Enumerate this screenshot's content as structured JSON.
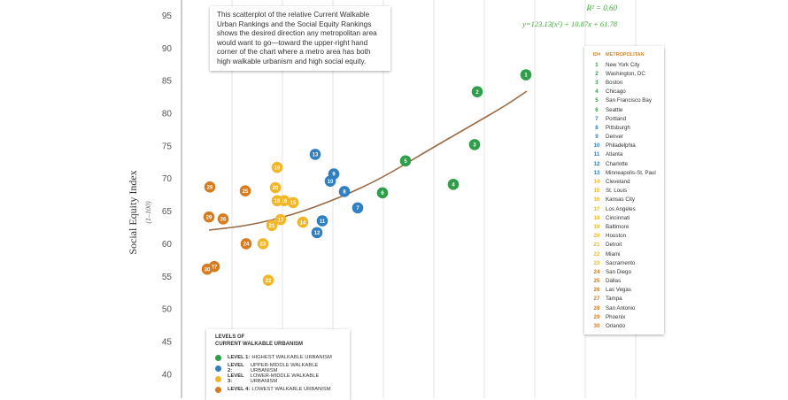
{
  "note_text": "This scatterplot of the relative Current Walkable Urban Rankings and the Social Equity Rankings shows the desired direction any metropolitan area would want to go—toward the upper-right hand corner of the chart where a metro area has both high walkable urbanism and high social equity.",
  "r2_label": "R² = 0.60",
  "equation_label": "y=123.13(x²) + 10.87x + 61.78",
  "legend": {
    "title_line1": "LEVELS OF",
    "title_line2": "CURRENT WALKABLE URBANISM",
    "levels": [
      {
        "level": "LEVEL 1:",
        "label": "HIGHEST WALKABLE URBANISM",
        "color": "#2e9e48"
      },
      {
        "level": "LEVEL 2:",
        "label": "UPPER-MIDDLE WALKABLE URBANISM",
        "color": "#2f7fc1"
      },
      {
        "level": "LEVEL 3:",
        "label": "LOWER-MIDDLE WALKABLE URBANISM",
        "color": "#f2b728"
      },
      {
        "level": "LEVEL 4:",
        "label": "LOWEST WALKABLE URBANISM",
        "color": "#d67b1e"
      }
    ]
  },
  "metro_table": {
    "col_id": "ID#",
    "col_name": "METROPOLITAN",
    "rows": [
      {
        "id": "1",
        "name": "New York City",
        "level": 1
      },
      {
        "id": "2",
        "name": "Washington, DC",
        "level": 1
      },
      {
        "id": "3",
        "name": "Boston",
        "level": 1
      },
      {
        "id": "4",
        "name": "Chicago",
        "level": 1
      },
      {
        "id": "5",
        "name": "San Francisco Bay",
        "level": 1
      },
      {
        "id": "6",
        "name": "Seattle",
        "level": 1
      },
      {
        "id": "7",
        "name": "Portland",
        "level": 2
      },
      {
        "id": "8",
        "name": "Pittsburgh",
        "level": 2
      },
      {
        "id": "9",
        "name": "Denver",
        "level": 2
      },
      {
        "id": "10",
        "name": "Philadelphia",
        "level": 2
      },
      {
        "id": "11",
        "name": "Atlanta",
        "level": 2
      },
      {
        "id": "12",
        "name": "Charlotte",
        "level": 2
      },
      {
        "id": "13",
        "name": "Minneapolis-St. Paul",
        "level": 2
      },
      {
        "id": "14",
        "name": "Cleveland",
        "level": 3
      },
      {
        "id": "15",
        "name": "St. Louis",
        "level": 3
      },
      {
        "id": "16",
        "name": "Kansas City",
        "level": 3
      },
      {
        "id": "17",
        "name": "Los Angeles",
        "level": 3
      },
      {
        "id": "18",
        "name": "Cincinnati",
        "level": 3
      },
      {
        "id": "19",
        "name": "Baltimore",
        "level": 3
      },
      {
        "id": "20",
        "name": "Houston",
        "level": 3
      },
      {
        "id": "21",
        "name": "Detroit",
        "level": 3
      },
      {
        "id": "22",
        "name": "Miami",
        "level": 3
      },
      {
        "id": "23",
        "name": "Sacramento",
        "level": 3
      },
      {
        "id": "24",
        "name": "San Diego",
        "level": 4
      },
      {
        "id": "25",
        "name": "Dallas",
        "level": 4
      },
      {
        "id": "26",
        "name": "Las Vegas",
        "level": 4
      },
      {
        "id": "27",
        "name": "Tampa",
        "level": 4
      },
      {
        "id": "28",
        "name": "San Antonio",
        "level": 4
      },
      {
        "id": "29",
        "name": "Phoenix",
        "level": 4
      },
      {
        "id": "30",
        "name": "Orlando",
        "level": 4
      }
    ]
  },
  "chart_data": {
    "type": "scatter",
    "ylabel": "Social Equity Index",
    "ylabel_sub": "(1–100)",
    "ylim": [
      38,
      97
    ],
    "y_ticks": [
      40,
      45,
      50,
      55,
      60,
      65,
      70,
      75,
      80,
      85,
      90,
      95
    ],
    "grid": "vertical lines only",
    "trendline": "quadratic",
    "points": [
      {
        "id": "1",
        "y": 85.9,
        "level": 1
      },
      {
        "id": "2",
        "y": 83.3,
        "level": 1
      },
      {
        "id": "3",
        "y": 75.2,
        "level": 1
      },
      {
        "id": "4",
        "y": 69.1,
        "level": 1
      },
      {
        "id": "5",
        "y": 72.7,
        "level": 1
      },
      {
        "id": "6",
        "y": 67.8,
        "level": 1
      },
      {
        "id": "7",
        "y": 65.5,
        "level": 2
      },
      {
        "id": "8",
        "y": 68.0,
        "level": 2
      },
      {
        "id": "9",
        "y": 70.7,
        "level": 2
      },
      {
        "id": "10",
        "y": 69.6,
        "level": 2
      },
      {
        "id": "11",
        "y": 63.5,
        "level": 2
      },
      {
        "id": "12",
        "y": 61.7,
        "level": 2
      },
      {
        "id": "13",
        "y": 73.7,
        "level": 2
      },
      {
        "id": "14",
        "y": 63.3,
        "level": 3
      },
      {
        "id": "15",
        "y": 66.3,
        "level": 3
      },
      {
        "id": "16",
        "y": 66.6,
        "level": 3
      },
      {
        "id": "17",
        "y": 63.7,
        "level": 3
      },
      {
        "id": "18",
        "y": 66.6,
        "level": 3
      },
      {
        "id": "19",
        "y": 71.7,
        "level": 3
      },
      {
        "id": "20",
        "y": 68.6,
        "level": 3
      },
      {
        "id": "21",
        "y": 62.8,
        "level": 3
      },
      {
        "id": "22",
        "y": 54.4,
        "level": 3
      },
      {
        "id": "23",
        "y": 60.0,
        "level": 3
      },
      {
        "id": "24",
        "y": 60.0,
        "level": 4
      },
      {
        "id": "25",
        "y": 68.1,
        "level": 4
      },
      {
        "id": "26",
        "y": 63.8,
        "level": 4
      },
      {
        "id": "27",
        "y": 56.5,
        "level": 4
      },
      {
        "id": "28",
        "y": 68.7,
        "level": 4
      },
      {
        "id": "29",
        "y": 64.1,
        "level": 4
      },
      {
        "id": "30",
        "y": 56.1,
        "level": 4
      }
    ]
  }
}
